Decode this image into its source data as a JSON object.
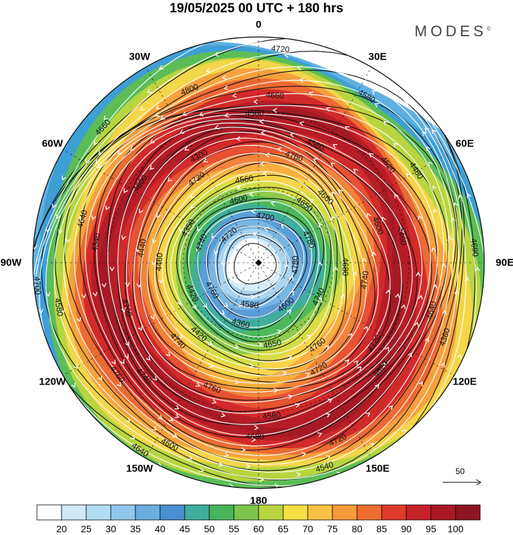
{
  "header": {
    "title": "19/05/2025  00 UTC  + 180 hrs",
    "brand": "MODES",
    "brand_mark": "©"
  },
  "longitude_labels": [
    {
      "text": "0",
      "angle": 0
    },
    {
      "text": "30E",
      "angle": 30
    },
    {
      "text": "60E",
      "angle": 60
    },
    {
      "text": "90E",
      "angle": 90
    },
    {
      "text": "120E",
      "angle": 120
    },
    {
      "text": "150E",
      "angle": 150
    },
    {
      "text": "180",
      "angle": 180
    },
    {
      "text": "150W",
      "angle": 210
    },
    {
      "text": "120W",
      "angle": 240
    },
    {
      "text": "90W",
      "angle": 270
    },
    {
      "text": "60W",
      "angle": 300
    },
    {
      "text": "30W",
      "angle": 330
    }
  ],
  "contour_labels": [
    "4780",
    "4740",
    "4660",
    "4600",
    "4440",
    "4480",
    "4360",
    "4300",
    "4360",
    "4420",
    "4560",
    "4540",
    "4350",
    "4460",
    "4640",
    "4560",
    "4620",
    "4700",
    "4660",
    "4680",
    "4720",
    "4740",
    "4760",
    "4700",
    "4720",
    "4640",
    "4780",
    "4760",
    "4800",
    "4740",
    "4760",
    "4580",
    "4650",
    "4600",
    "4690",
    "4420",
    "4560",
    "4340",
    "4460",
    "4520",
    "4580",
    "4720",
    "4640",
    "4760",
    "4760",
    "4720",
    "4740",
    "4600",
    "4600",
    "4600",
    "4720",
    "4580",
    "4650",
    "4560",
    "4660",
    "4680",
    "4740",
    "4720",
    "4760",
    "4340"
  ],
  "reference_vector": {
    "value": "50"
  },
  "colorbar": {
    "labels": [
      "20",
      "25",
      "30",
      "35",
      "40",
      "45",
      "50",
      "55",
      "60",
      "65",
      "70",
      "75",
      "80",
      "85",
      "90",
      "95",
      "100"
    ],
    "colors": [
      "#ffffff",
      "#cfe9f8",
      "#b2dcf3",
      "#8fc7ec",
      "#6aaedf",
      "#4a8fd0",
      "#3fae9a",
      "#49b45a",
      "#7ec44b",
      "#b8d540",
      "#f4df45",
      "#f8c244",
      "#f59a3a",
      "#ee6e32",
      "#de3b2b",
      "#c7222b",
      "#ab1724",
      "#8e1520"
    ]
  },
  "field": {
    "description_colors": {
      "core": "#ffffff",
      "inner": [
        "#d7edf9",
        "#a9d4f0",
        "#79b7e3",
        "#5a9ed8",
        "#3fae9a",
        "#4fb85b",
        "#8fca4a",
        "#d6dd45",
        "#f6d54a",
        "#f7b03f",
        "#f2843a",
        "#e65232",
        "#d22a2b",
        "#b71d27",
        "#a31a24",
        "#b71d27",
        "#d22a2b",
        "#ec6a33",
        "#f6a13e",
        "#f3d64a",
        "#b8d540",
        "#5cbd57",
        "#3e9fd5",
        "#5fb0e0"
      ]
    }
  }
}
